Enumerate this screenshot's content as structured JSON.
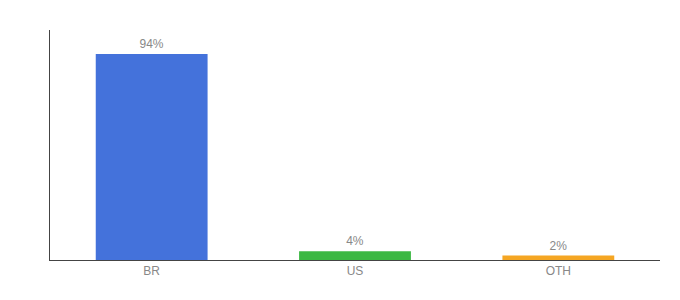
{
  "chart_data": {
    "type": "bar",
    "categories": [
      "BR",
      "US",
      "OTH"
    ],
    "values": [
      94,
      4,
      2
    ],
    "value_labels": [
      "94%",
      "4%",
      "2%"
    ],
    "colors": [
      "#4472db",
      "#3cb843",
      "#f5a623"
    ],
    "ylim": [
      0,
      105
    ],
    "yticks": [],
    "grid": false,
    "data_labels": true,
    "tick_labels": "x"
  }
}
